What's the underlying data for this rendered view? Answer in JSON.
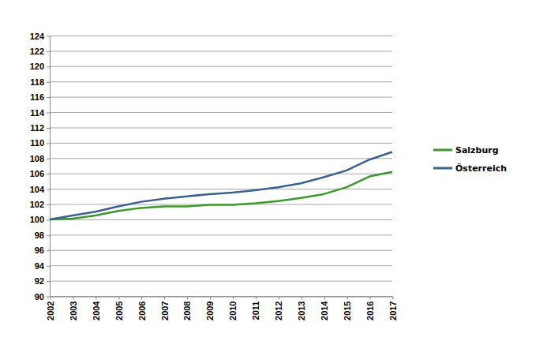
{
  "chart_data": {
    "type": "line",
    "x": [
      2002,
      2003,
      2004,
      2005,
      2006,
      2007,
      2008,
      2009,
      2010,
      2011,
      2012,
      2013,
      2014,
      2015,
      2016,
      2017
    ],
    "series": [
      {
        "name": "Salzburg",
        "color": "#3c9a2c",
        "values": [
          100,
          100.1,
          100.5,
          101.1,
          101.5,
          101.7,
          101.7,
          101.9,
          101.9,
          102.1,
          102.4,
          102.8,
          103.3,
          104.2,
          105.6,
          106.2
        ]
      },
      {
        "name": "Österreich",
        "color": "#3b6190",
        "values": [
          100,
          100.5,
          101.0,
          101.7,
          102.3,
          102.7,
          103.0,
          103.3,
          103.5,
          103.8,
          104.2,
          104.7,
          105.5,
          106.4,
          107.8,
          108.8
        ]
      }
    ],
    "xlim": [
      2002,
      2017
    ],
    "xticks": [
      2002,
      2003,
      2004,
      2005,
      2006,
      2007,
      2008,
      2009,
      2010,
      2011,
      2012,
      2013,
      2014,
      2015,
      2016,
      2017
    ],
    "ylim": [
      90,
      124
    ],
    "yticks": [
      90,
      92,
      94,
      96,
      98,
      100,
      102,
      104,
      106,
      108,
      110,
      112,
      114,
      116,
      118,
      120,
      122,
      124
    ],
    "grid": true,
    "legend": "right"
  }
}
